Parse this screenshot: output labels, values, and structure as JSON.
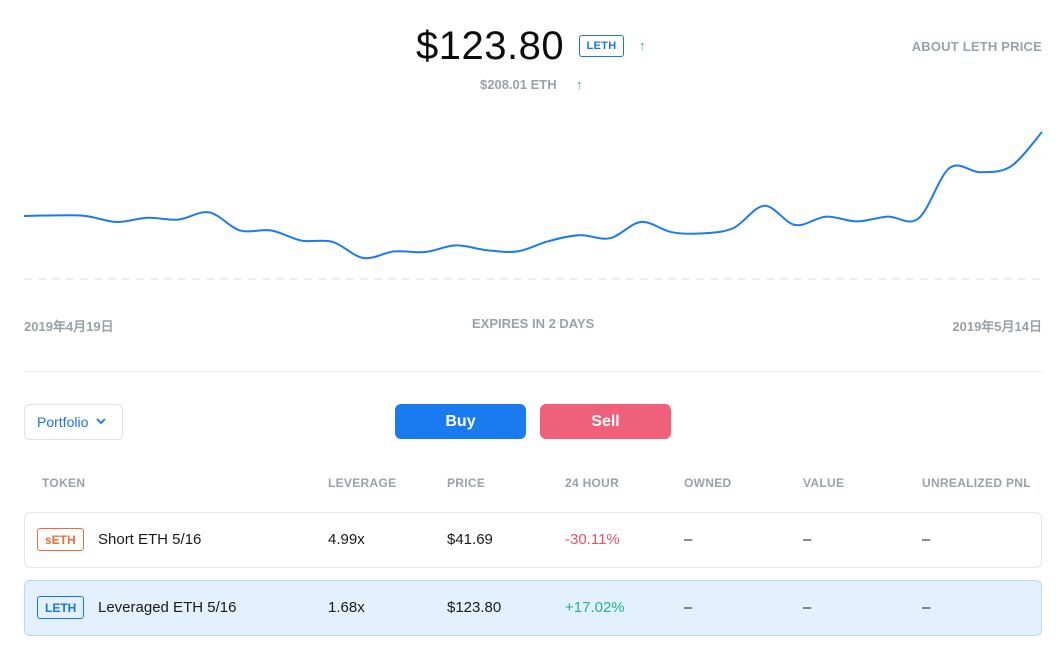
{
  "header": {
    "price": "$123.80",
    "token_symbol": "LETH",
    "up_icon": "arrow-up-icon",
    "eth_price": "$208.01 ETH",
    "about_link": "ABOUT LETH PRICE"
  },
  "chart_data": {
    "type": "line",
    "x_start_label": "2019年4月19日",
    "x_end_label": "2019年5月14日",
    "center_label": "EXPIRES IN 2 DAYS",
    "grid": false,
    "line_color": "#1a7bf0",
    "values": [
      0.47,
      0.48,
      0.47,
      0.37,
      0.44,
      0.41,
      0.53,
      0.23,
      0.23,
      0.06,
      0.04,
      -0.23,
      -0.12,
      -0.13,
      -0.02,
      -0.1,
      -0.12,
      0.05,
      0.15,
      0.1,
      0.37,
      0.2,
      0.18,
      0.27,
      0.64,
      0.32,
      0.46,
      0.38,
      0.46,
      0.43,
      1.27,
      1.2,
      1.3,
      1.87
    ]
  },
  "controls": {
    "portfolio_label": "Portfolio",
    "portfolio_icon": "chevron-down-icon",
    "buy_label": "Buy",
    "sell_label": "Sell"
  },
  "table": {
    "headers": [
      "TOKEN",
      "LEVERAGE",
      "PRICE",
      "24 HOUR",
      "OWNED",
      "VALUE",
      "UNREALIZED PNL"
    ],
    "rows": [
      {
        "badge": "sETH",
        "name": "Short ETH 5/16",
        "leverage": "4.99x",
        "price": "$41.69",
        "change": "-30.11%",
        "owned": "–",
        "value": "–",
        "pnl": "–"
      },
      {
        "badge": "LETH",
        "name": "Leveraged ETH 5/16",
        "leverage": "1.68x",
        "price": "$123.80",
        "change": "+17.02%",
        "owned": "–",
        "value": "–",
        "pnl": "–"
      }
    ]
  },
  "colors": {
    "accent": "#1a7bf0",
    "sell": "#f0607a",
    "positive": "#21b38b",
    "negative": "#f0506a",
    "short_badge": "#f06a3a"
  }
}
